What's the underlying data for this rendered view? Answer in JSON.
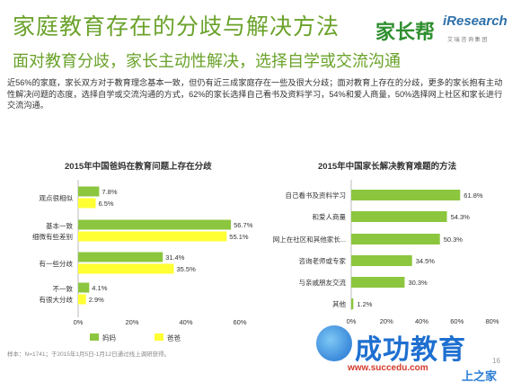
{
  "header": {
    "title": "家庭教育存在的分歧与解决方法",
    "subtitle": "面对教育分歧，家长主动性解决，选择自学或交流沟通",
    "logo_left": "家长帮",
    "logo_right": "iResearch",
    "logo_right_sub": "艾 瑞 咨 询 集 团"
  },
  "body_text": "近56%的家庭，家长双方对于教育理念基本一致，但仍有近三成家庭存在一些及很大分歧；面对教育上存在的分歧，更多的家长抱有主动性解决问题的态度，选择自学或交流沟通的方式，62%的家长选择自己看书及资料学习，54%和爱人商量，50%选择网上社区和家长进行交流沟通。",
  "footnote": "样本：N=1741；于2015年1月5日-1月12日通过线上调研获得。",
  "page_number": "16",
  "watermark": {
    "main": "成功教育",
    "url": "www.succedu.com",
    "corner": "上之家"
  },
  "colors": {
    "green": "#8cc63f",
    "yellow": "#ffff33",
    "title_green": "#6aa22a"
  },
  "chart_data": [
    {
      "type": "bar",
      "orientation": "horizontal",
      "title": "2015年中国爸妈在教育问题上存在分歧",
      "categories": [
        [
          "观点很相似"
        ],
        [
          "基本一致",
          "细微有些差别"
        ],
        [
          "有一些分歧"
        ],
        [
          "不一致",
          "有很大分歧"
        ]
      ],
      "series": [
        {
          "name": "妈妈",
          "color": "#8cc63f",
          "values": [
            7.8,
            56.7,
            31.4,
            4.1
          ]
        },
        {
          "name": "爸爸",
          "color": "#ffff33",
          "values": [
            6.5,
            55.1,
            35.5,
            2.9
          ]
        }
      ],
      "value_labels": [
        [
          "7.8%",
          "56.7%",
          "31.4%",
          "4.1%"
        ],
        [
          "6.5%",
          "55.1%",
          "35.5%",
          "2.9%"
        ]
      ],
      "xlim": [
        0,
        60
      ],
      "xticks": [
        "0%",
        "20%",
        "40%",
        "60%"
      ],
      "legend": "bottom",
      "grid": false
    },
    {
      "type": "bar",
      "orientation": "horizontal",
      "title": "2015年中国家长解决教育难题的方法",
      "categories": [
        "自己看书及资料学习",
        "和爱人商量",
        "网上在社区和其他家长...",
        "咨询老师或专家",
        "与亲戚朋友交流",
        "其他"
      ],
      "series": [
        {
          "color": "#8cc63f",
          "values": [
            61.8,
            54.3,
            50.3,
            34.5,
            30.3,
            1.2
          ]
        }
      ],
      "value_labels": [
        "61.8%",
        "54.3%",
        "50.3%",
        "34.5%",
        "30.3%",
        "1.2%"
      ],
      "xlim": [
        0,
        80
      ],
      "xticks": [
        "0%",
        "20%",
        "40%",
        "60%",
        "80%"
      ],
      "legend": "none",
      "grid": false
    }
  ]
}
